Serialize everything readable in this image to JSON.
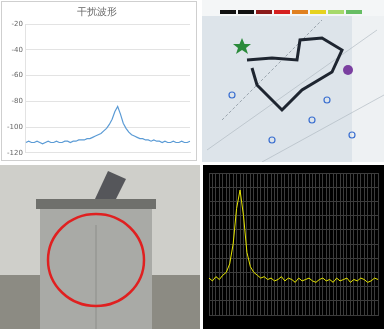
{
  "chart_data": [
    {
      "type": "line",
      "title": "干扰波形",
      "categories": [
        null,
        null,
        null,
        null,
        null,
        null,
        null,
        null,
        null,
        null,
        null,
        null,
        null,
        null,
        null,
        null,
        null,
        null,
        null,
        null,
        null,
        null,
        null,
        null,
        null,
        null,
        null,
        null,
        null,
        null,
        null,
        null,
        null,
        null,
        null,
        null,
        null,
        null,
        null,
        null,
        null,
        null,
        null,
        null,
        null,
        null,
        null,
        null,
        null,
        null,
        null,
        null,
        null,
        null,
        null,
        null,
        null,
        null,
        null,
        null
      ],
      "values": [
        -112,
        -111,
        -112,
        -112,
        -111,
        -112,
        -113,
        -112,
        -111,
        -112,
        -112,
        -111,
        -112,
        -112,
        -111,
        -111,
        -112,
        -111,
        -111,
        -110,
        -110,
        -110,
        -109,
        -109,
        -108,
        -107,
        -106,
        -105,
        -103,
        -101,
        -98,
        -94,
        -88,
        -84,
        -90,
        -97,
        -101,
        -104,
        -106,
        -107,
        -108,
        -109,
        -109,
        -110,
        -110,
        -111,
        -110,
        -111,
        -111,
        -112,
        -111,
        -112,
        -112,
        -111,
        -112,
        -112,
        -111,
        -112,
        -112,
        -111
      ],
      "color": "#5b9bd5",
      "ylim": [
        -120,
        -20
      ],
      "yticks": [
        -120,
        -100,
        -80,
        -60,
        -40,
        -20
      ],
      "grid": true,
      "tick_labels": "y"
    },
    {
      "type": "line",
      "categories": [
        null,
        null,
        null,
        null,
        null,
        null,
        null,
        null,
        null,
        null,
        null,
        null,
        null,
        null,
        null,
        null,
        null,
        null,
        null,
        null,
        null,
        null,
        null,
        null,
        null,
        null,
        null,
        null,
        null,
        null,
        null,
        null,
        null,
        null,
        null,
        null,
        null,
        null,
        null,
        null,
        null,
        null,
        null,
        null,
        null,
        null,
        null,
        null,
        null,
        null
      ],
      "values": [
        -84,
        -86,
        -83,
        -85,
        -82,
        -80,
        -74,
        -60,
        -35,
        -22,
        -40,
        -66,
        -76,
        -80,
        -82,
        -84,
        -83,
        -85,
        -84,
        -86,
        -85,
        -83,
        -86,
        -84,
        -85,
        -87,
        -84,
        -86,
        -85,
        -84,
        -86,
        -87,
        -85,
        -84,
        -86,
        -85,
        -87,
        -84,
        -86,
        -85,
        -84,
        -87,
        -85,
        -86,
        -84,
        -85,
        -87,
        -86,
        -84,
        -85
      ],
      "color": "#e8e800",
      "ylim": [
        -110,
        -10
      ],
      "yticks": [
        -110,
        -100,
        -90,
        -80,
        -70,
        -60,
        -50,
        -40,
        -30,
        -20,
        -10
      ],
      "grid": true,
      "tick_labels": false
    }
  ]
}
